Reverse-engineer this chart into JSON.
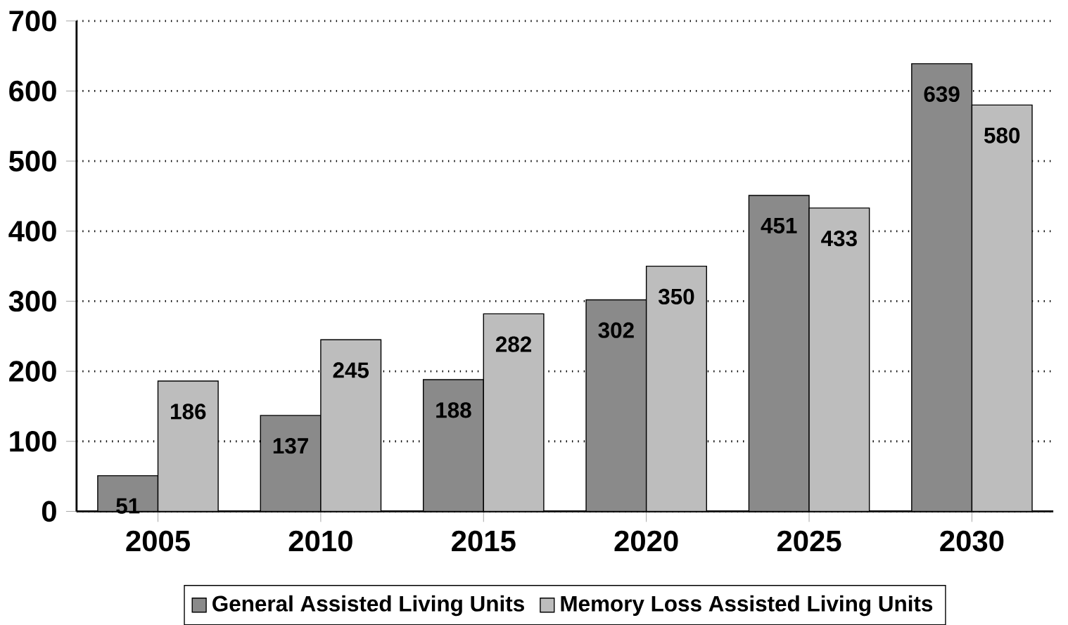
{
  "chart_data": {
    "type": "bar",
    "categories": [
      "2005",
      "2010",
      "2015",
      "2020",
      "2025",
      "2030"
    ],
    "series": [
      {
        "name": "General Assisted Living Units",
        "color": "#8a8a8a",
        "values": [
          51,
          137,
          188,
          302,
          451,
          639
        ]
      },
      {
        "name": "Memory Loss Assisted Living Units",
        "color": "#bdbdbd",
        "values": [
          186,
          245,
          282,
          350,
          433,
          580
        ]
      }
    ],
    "ylim": [
      0,
      700
    ],
    "yticks": [
      0,
      100,
      200,
      300,
      400,
      500,
      600,
      700
    ],
    "grid": "y",
    "legend": "bottom",
    "data_labels": true
  }
}
